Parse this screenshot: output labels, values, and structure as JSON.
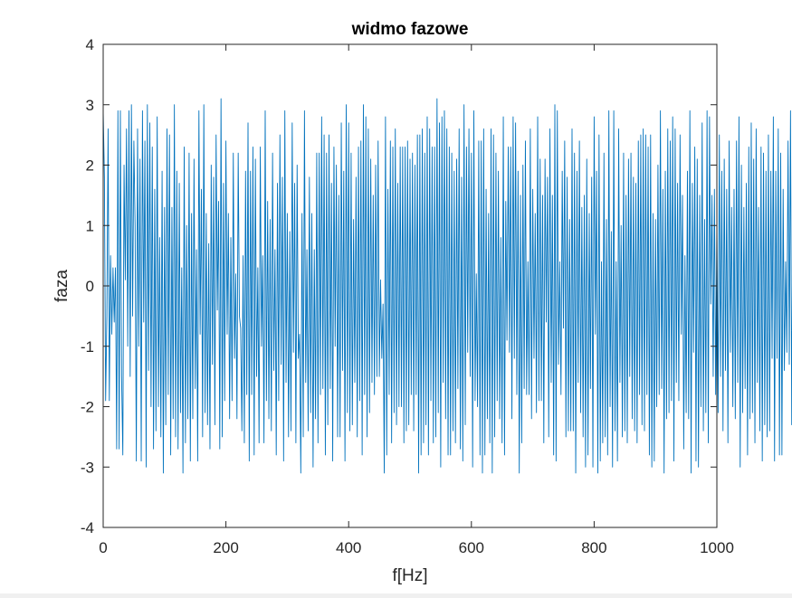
{
  "chart_data": {
    "type": "line",
    "title": "widmo fazowe",
    "xlabel": "f[Hz]",
    "ylabel": "faza",
    "xlim": [
      0,
      1000
    ],
    "ylim": [
      -4,
      4
    ],
    "xticks": [
      0,
      200,
      400,
      600,
      800,
      1000
    ],
    "yticks": [
      4,
      3,
      2,
      1,
      0,
      -1,
      -2,
      -3,
      -4
    ],
    "xtick_labels": [
      "0",
      "200",
      "400",
      "600",
      "800",
      "1000"
    ],
    "ytick_labels": [
      "4",
      "3",
      "2",
      "1",
      "0",
      "-1",
      "-2",
      "-3",
      "-4"
    ],
    "grid": false,
    "series": [
      {
        "color": "#0072bd",
        "x_start": 0,
        "x_step": 2,
        "y": [
          2.9,
          1.8,
          -1.9,
          -0.5,
          2.6,
          -1.9,
          0.5,
          -0.8,
          0.3,
          -0.6,
          0.3,
          -2.7,
          2.9,
          -2.7,
          2.9,
          -1.5,
          -2.8,
          2.0,
          0.1,
          2.6,
          -1.0,
          2.9,
          -1.5,
          3.0,
          -0.5,
          2.4,
          1.0,
          -2.9,
          2.6,
          -1.0,
          2.1,
          -2.9,
          2.9,
          -0.6,
          2.4,
          -3.0,
          3.0,
          -1.4,
          2.7,
          -2.0,
          2.3,
          -2.7,
          1.6,
          -2.4,
          2.8,
          -2.0,
          0.8,
          -2.5,
          1.9,
          -3.1,
          1.3,
          -2.3,
          2.6,
          -1.8,
          2.5,
          -2.8,
          1.3,
          -2.2,
          3.0,
          -2.5,
          1.9,
          -2.7,
          1.7,
          -2.1,
          0.3,
          -3.1,
          2.3,
          -2.6,
          1.0,
          -2.2,
          2.2,
          -2.9,
          1.2,
          -2.2,
          2.1,
          -1.7,
          0.6,
          -2.9,
          2.9,
          -0.8,
          1.6,
          -2.5,
          3.0,
          -2.1,
          1.2,
          -2.3,
          0.7,
          -2.7,
          2.0,
          -1.3,
          1.8,
          -2.3,
          2.5,
          -0.4,
          1.4,
          -2.7,
          3.1,
          -2.5,
          1.7,
          -1.9,
          2.4,
          -0.8,
          1.2,
          -2.2,
          0.8,
          -1.9,
          2.2,
          -1.2,
          0.2,
          -2.2,
          2.2,
          -0.5,
          -0.7,
          -2.4,
          0.5,
          -2.6,
          1.9,
          -1.8,
          2.7,
          -2.9,
          1.9,
          -1.8,
          2.3,
          -2.8,
          2.1,
          -1.5,
          0.3,
          -2.6,
          2.3,
          -1.0,
          0.5,
          -2.6,
          2.9,
          -1.9,
          1.4,
          -2.2,
          1.1,
          -2.4,
          2.2,
          -1.4,
          0.6,
          -2.8,
          1.7,
          -1.9,
          2.5,
          -1.3,
          1.8,
          -2.9,
          2.9,
          -1.6,
          1.2,
          -2.5,
          0.9,
          -2.4,
          2.7,
          -1.1,
          1.7,
          -2.6,
          2.0,
          -1.2,
          -0.8,
          -3.1,
          1.2,
          -2.5,
          2.9,
          -1.6,
          0.6,
          -2.4,
          1.8,
          -2.1,
          1.2,
          -3.0,
          0.6,
          -2.2,
          2.2,
          -2.6,
          2.2,
          -1.8,
          2.8,
          -1.7,
          2.5,
          -2.8,
          2.2,
          -2.3,
          2.5,
          -1.7,
          1.7,
          -2.9,
          2.3,
          -1.0,
          2.0,
          -2.5,
          1.5,
          -2.5,
          2.7,
          -1.4,
          1.9,
          -2.9,
          3.0,
          -2.1,
          2.7,
          -2.4,
          2.2,
          -2.3,
          1.1,
          -1.6,
          1.8,
          -2.5,
          2.3,
          -1.9,
          2.4,
          -2.8,
          3.0,
          -1.8,
          2.8,
          -2.5,
          2.6,
          -2.1,
          2.1,
          -1.6,
          1.5,
          -1.8,
          2.0,
          -1.5,
          2.4,
          -1.5,
          0.1,
          -1.2,
          -0.3,
          -3.1,
          2.8,
          -2.8,
          1.6,
          -1.8,
          2.4,
          -2.6,
          2.3,
          -2.1,
          2.6,
          -2.3,
          1.7,
          -2.0,
          2.3,
          -2.0,
          2.3,
          -2.6,
          2.3,
          -2.4,
          2.4,
          -2.3,
          2.1,
          -1.8,
          2.2,
          -2.4,
          2.0,
          -1.8,
          2.5,
          -3.1,
          2.5,
          -2.8,
          2.6,
          -2.6,
          2.2,
          -2.3,
          2.8,
          -2.8,
          2.6,
          -1.9,
          2.3,
          -2.6,
          2.3,
          -2.5,
          3.1,
          -2.1,
          2.7,
          -3.0,
          2.8,
          -1.6,
          2.9,
          -2.2,
          2.6,
          -2.8,
          2.3,
          -2.8,
          2.2,
          -2.4,
          1.9,
          -2.6,
          2.1,
          -1.7,
          2.6,
          -2.7,
          1.8,
          -2.9,
          3.0,
          -2.3,
          2.3,
          -1.1,
          2.6,
          -1.5,
          2.2,
          -3.0,
          2.9,
          -1.9,
          0.2,
          -2.0,
          2.4,
          -2.8,
          2.4,
          -3.1,
          2.6,
          -2.8,
          1.6,
          -2.2,
          1.2,
          -2.6,
          2.6,
          -3.1,
          2.5,
          -2.5,
          2.2,
          -1.9,
          1.9,
          -2.2,
          0.8,
          -2.6,
          2.8,
          -2.8,
          1.4,
          -0.9,
          2.3,
          -1.1,
          2.3,
          -2.2,
          2.8,
          -1.2,
          2.7,
          -1.8,
          1.9,
          -3.1,
          1.5,
          -2.6,
          2.0,
          -1.7,
          2.4,
          -1.8,
          0.4,
          -1.8,
          2.6,
          -2.2,
          1.6,
          -1.2,
          1.2,
          -2.1,
          2.8,
          -1.9,
          2.1,
          -1.9,
          1.5,
          -2.6,
          2.1,
          -0.6,
          1.8,
          -2.5,
          2.6,
          -1.6,
          1.5,
          -2.8,
          3.0,
          -2.9,
          2.9,
          -1.3,
          0.4,
          -1.8,
          1.9,
          -0.7,
          2.4,
          -2.5,
          1.8,
          -2.4,
          1.1,
          -2.4,
          2.6,
          -2.4,
          2.2,
          -3.1,
          1.9,
          -1.6,
          2.4,
          -2.1,
          1.3,
          -2.5,
          1.5,
          -3.0,
          2.1,
          -2.8,
          1.2,
          -1.7,
          1.8,
          -3.0,
          2.8,
          -0.8,
          1.9,
          -3.1,
          2.5,
          -2.9,
          0.4,
          -2.6,
          2.2,
          -2.5,
          1.1,
          -2.8,
          2.9,
          -2.0,
          0.9,
          -3.0,
          2.9,
          -2.4,
          0.4,
          -2.9,
          2.6,
          -1.6,
          1.0,
          -2.5,
          2.2,
          -2.4,
          1.5,
          -2.6,
          2.1,
          -1.5,
          2.2,
          -2.2,
          1.8,
          -2.4,
          1.7,
          -2.6,
          2.4,
          -1.8,
          2.5,
          -2.3,
          2.6,
          -2.4,
          2.5,
          -1.8,
          2.3,
          -2.8,
          2.5,
          -3.0,
          1.2,
          -2.9,
          1.1,
          -2.0,
          2.0,
          -1.8,
          2.9,
          -1.7,
          1.6,
          -3.1,
          1.9,
          -2.2,
          2.6,
          -2.1,
          2.4,
          -1.9,
          2.8,
          -2.9,
          2.6,
          -1.6,
          1.7,
          -1.9,
          2.5,
          -0.8,
          1.5,
          -2.7,
          0.5,
          -2.1,
          1.9,
          -2.2,
          2.9,
          -3.1,
          1.7,
          -1.1,
          2.3,
          -2.9,
          2.1,
          -3.0,
          1.5,
          -2.0,
          2.7,
          -2.4,
          1.1,
          -2.1,
          2.9,
          -2.6,
          2.8,
          -0.3,
          1.5,
          -1.5,
          1.6,
          -1.8,
          1.0,
          -2.1,
          2.5,
          -1.5,
          1.9,
          -2.4,
          2.1,
          -1.4,
          1.6,
          -2.6,
          2.4,
          -1.1,
          1.3,
          -2.0,
          1.6,
          -2.2,
          2.4,
          -1.6,
          2.8,
          -3.0,
          2.0,
          -2.1,
          1.3,
          -1.7,
          1.7,
          -2.8,
          2.3,
          -2.2,
          2.7,
          -2.1,
          2.1,
          -2.6,
          2.6,
          -1.6,
          1.3,
          -2.4,
          2.3,
          -2.9,
          2.2,
          -2.3,
          1.9,
          -2.5,
          2.5,
          -2.4,
          1.9,
          -1.2,
          2.8,
          -2.9,
          1.9,
          -1.2,
          2.6,
          -2.8,
          2.2,
          -2.8,
          1.6,
          -1.4,
          0.4,
          -1.1,
          2.4,
          -1.3,
          2.9,
          -2.3,
          2.0,
          -1.6,
          2.4,
          -2.6,
          1.4,
          -2.9,
          2.2,
          -1.4,
          1.0,
          -0.7,
          0.5,
          -2.3,
          1.8,
          -2.0,
          2.5,
          -2.2,
          2.7,
          -1.8,
          1.5,
          -1.0,
          2.2,
          -1.6,
          2.7,
          -2.7,
          2.1,
          -1.5,
          1.6,
          -2.7,
          2.6,
          -0.9,
          1.2,
          -2.9,
          1.6,
          -2.0,
          2.1,
          -2.9,
          1.4,
          -2.8,
          0.3,
          -2.8,
          0.5,
          -1.3,
          2.1,
          -3.0,
          1.8,
          -2.1,
          2.4,
          -1.7,
          1.3,
          -2.1,
          2.8,
          -3.0,
          1.9,
          -1.9,
          2.9,
          -2.6,
          2.6,
          -2.8,
          1.9,
          -1.7,
          2.2,
          -3.0,
          1.6,
          -1.8,
          1.4,
          -2.5,
          1.2,
          -1.2,
          1.5,
          -2.1,
          2.6,
          -2.7,
          1.8,
          -1.6,
          1.5,
          -2.4,
          1.1,
          -2.8,
          0.6,
          -1.9,
          1.0,
          -0.5,
          2.3,
          -1.6,
          0.9,
          -0.8,
          1.4,
          -0.6,
          2.4,
          -1.6,
          1.5,
          0.3,
          1.6,
          -1.6,
          2.3,
          -0.5,
          1.4,
          -2.2,
          2.9,
          -1.7,
          2.0,
          -2.4,
          1.2,
          -0.9,
          2.9,
          -1.0,
          1.4,
          -2.7,
          2.2,
          -3.1,
          2.3,
          -1.8,
          2.4,
          -1.0,
          2.9,
          -1.8,
          0.1,
          -1.7,
          0.4,
          -0.4,
          -1.1
        ]
      }
    ]
  }
}
